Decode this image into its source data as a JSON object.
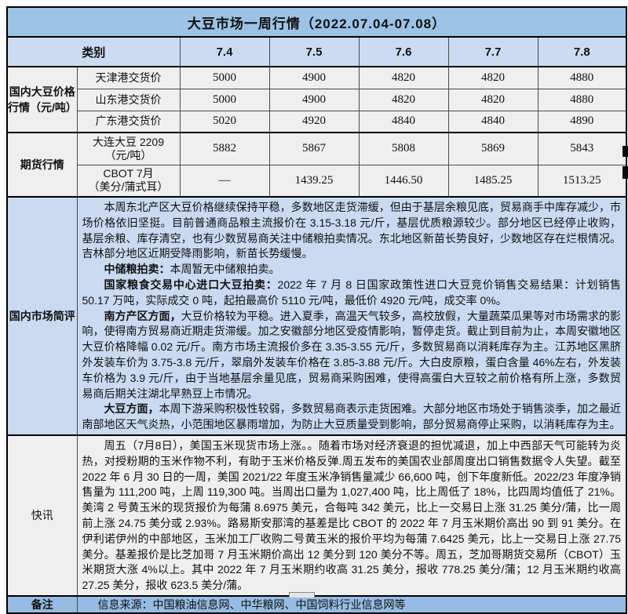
{
  "title": "大豆市场一周行情（2022.07.04-07.08）",
  "header": {
    "category_label": "类别",
    "dates": [
      "7.4",
      "7.5",
      "7.6",
      "7.7",
      "7.8"
    ]
  },
  "price_section": {
    "label": "国内大豆价格行情（元/吨）",
    "rows": [
      {
        "name": "天津港交货价",
        "values": [
          "5000",
          "4900",
          "4820",
          "4820",
          "4880"
        ]
      },
      {
        "name": "山东港交货价",
        "values": [
          "5000",
          "4900",
          "4820",
          "4820",
          "4880"
        ]
      },
      {
        "name": "广东港交货价",
        "values": [
          "5020",
          "4920",
          "4840",
          "4840",
          "4890"
        ]
      }
    ]
  },
  "futures_section": {
    "label": "期货行情",
    "rows": [
      {
        "name": "大连大豆 2209\n（元/吨）",
        "values": [
          "5882",
          "5867",
          "5808",
          "5869",
          "5843"
        ]
      },
      {
        "name": "CBOT 7月\n（美分/蒲式耳）",
        "values": [
          "—",
          "1439.25",
          "1446.50",
          "1485.25",
          "1513.25"
        ]
      }
    ]
  },
  "commentary": {
    "label": "国内市场简评",
    "paragraphs": [
      {
        "lead": "",
        "text": "本周东北产区大豆价格继续保持平稳，多数地区走货滞缓，但由于基层余粮见底，贸易商手中库存减少，市场价格依旧坚挺。目前普通商品粮主流报价在 3.15-3.18 元/斤，基层优质粮源较少。部分地区已经停止收购，基层余粮、库存清空，也有少数贸易商关注中储粮拍卖情况。东北地区新苗长势良好，少数地区存在烂根情况。吉林部分地区近期受降雨影响，新苗长势缓慢。"
      },
      {
        "lead": "中储粮拍卖：",
        "text": "本周暂无中储粮拍卖。"
      },
      {
        "lead": "国家粮食交易中心进口大豆拍卖：",
        "text": "2022 年 7 月 8 日国家政策性进口大豆竞价销售交易结果：计划销售 50.17 万吨，实际成交 0 吨，起拍最高价 5110 元/吨，最低价 4920 元/吨，成交率 0%。"
      },
      {
        "lead": "南方产区方面，",
        "text": "大豆价格较为平稳。进入夏季，高温天气较多，高校放假，大量蔬菜瓜果等对市场需求的影响，使得南方贸易商近期走货滞缓。加之安徽部分地区受疫情影响，暂停走货。截止到目前为止，本周安徽地区大豆价格降幅 0.02 元/斤。南方市场主流报价多在 3.35-3.55 元/斤，多数贸易商以消耗库存为主。江苏地区黑脐外发装车价为 3.75-3.8 元/斤，翠扇外发装车价格在 3.85-3.88 元/斤。大白皮原粮，蛋白含量 46%左右，外发装车价格为 3.9 元/斤，由于当地基层余量见底，贸易商采购困难，使得高蛋白大豆较之前价格有所上涨，多数贸易商后期关注湖北早熟豆上市情况。"
      },
      {
        "lead": "大豆方面，",
        "text": "本周下游采购积极性较弱，多数贸易商表示走货困难。大部分地区市场处于销售淡季，加之最近南部地区天气炎热，小范围地区暴雨增加，为防止大豆质量受到影响，部分贸易商停止采购，以消耗库存为主。"
      }
    ]
  },
  "news": {
    "label": "快讯",
    "paragraphs": [
      {
        "lead": "",
        "text": "周五（7月8日），美国玉米现货市场上涨。。随着市场对经济衰退的担忧减退，加上中西部天气可能转为炎热，对授粉期的玉米作物不利，有助于玉米价格反弹.周五发布的美国农业部周度出口销售数据令人失望。截至 2022 年 6 月 30 日的一周，美国 2021/22 年度玉米净销售量减少 66,600 吨，创下年度新低。2022/23 年度净销售量为 111,200 吨，上周 119,300 吨。当周出口量为 1,027,400 吨，比上周低了 18%，比四周均值低了 21%。美湾 2 号黄玉米的现货报价为每蒲 8.6975 美元，合每吨 342 美元，比上一交易日上涨 31.25 美分/蒲，比一周前上涨 24.75 美分或 2.93%。路易斯安那湾的基差是比 CBOT 的 2022 年 7 月玉米期价高出 90 到 91 美分。在伊利诺伊州的中部地区，玉米加工厂收购二号黄玉米的报价平均为每蒲 7.6425 美元，比上一交易日上涨 27.75 美分。基差报价是比芝加哥 7 月玉米期价高出 12 美分到 120 美分不等。周五，芝加哥期货交易所（CBOT）玉米期货大涨 4%以上。其中 2022 年 7 月玉米期约收高 31.25 美分，报收 778.25 美分/蒲；12 月玉米期约收高 27.25 美分，报收 623.5 美分/蒲。"
      }
    ]
  },
  "remark": {
    "label": "备注",
    "text": "信息来源：中国粮油信息网、中华粮网、中国饲料行业信息网等"
  },
  "colors": {
    "title_bg": "#9cc3e6",
    "header_bg": "#cbdcf2",
    "commentary_bg": "#c9daf1",
    "news_bg": "#efefef",
    "remark_bg": "#96bce3",
    "grid_border": "#4a4a4a"
  }
}
